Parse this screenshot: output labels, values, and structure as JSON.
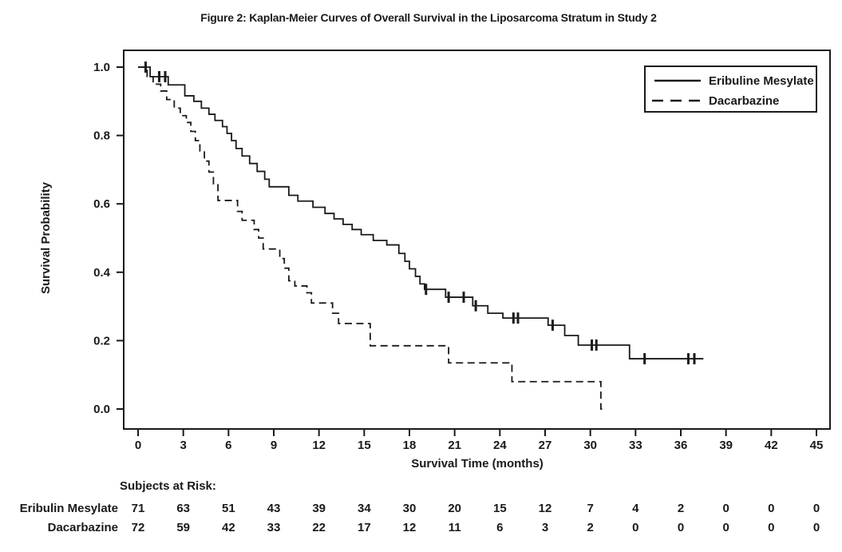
{
  "title": "Figure 2: Kaplan-Meier Curves of Overall Survival in the Liposarcoma Stratum in Study 2",
  "chart_data": {
    "type": "line",
    "subtype": "kaplan-meier-step",
    "title": "Figure 2: Kaplan-Meier Curves of Overall Survival in the Liposarcoma Stratum in Study 2",
    "xlabel": "Survival Time (months)",
    "ylabel": "Survival Probability",
    "xlim": [
      0,
      45
    ],
    "ylim": [
      0.0,
      1.0
    ],
    "x_ticks": [
      0,
      3,
      6,
      9,
      12,
      15,
      18,
      21,
      24,
      27,
      30,
      33,
      36,
      39,
      42,
      45
    ],
    "y_ticks": [
      "1.0",
      "0.8",
      "0.6",
      "0.4",
      "0.2",
      "0.0"
    ],
    "grid": false,
    "legend": {
      "position": "top-right",
      "entries": [
        {
          "label": "Eribuline Mesylate",
          "style": "solid"
        },
        {
          "label": "Dacarbazine",
          "style": "dashed"
        }
      ]
    },
    "series": [
      {
        "name": "Eribuline Mesylate",
        "style": "solid",
        "color": "#1a1a1a",
        "steps": [
          [
            0,
            1.0
          ],
          [
            0.8,
            0.972
          ],
          [
            2.0,
            0.948
          ],
          [
            3.1,
            0.916
          ],
          [
            3.7,
            0.9
          ],
          [
            4.2,
            0.88
          ],
          [
            4.7,
            0.862
          ],
          [
            5.1,
            0.844
          ],
          [
            5.6,
            0.826
          ],
          [
            5.9,
            0.806
          ],
          [
            6.2,
            0.785
          ],
          [
            6.5,
            0.762
          ],
          [
            6.9,
            0.74
          ],
          [
            7.4,
            0.718
          ],
          [
            7.9,
            0.695
          ],
          [
            8.4,
            0.672
          ],
          [
            8.7,
            0.65
          ],
          [
            10.0,
            0.625
          ],
          [
            10.6,
            0.608
          ],
          [
            11.6,
            0.59
          ],
          [
            12.4,
            0.572
          ],
          [
            13.0,
            0.556
          ],
          [
            13.6,
            0.54
          ],
          [
            14.2,
            0.525
          ],
          [
            14.8,
            0.51
          ],
          [
            15.6,
            0.493
          ],
          [
            16.5,
            0.48
          ],
          [
            17.3,
            0.455
          ],
          [
            17.7,
            0.432
          ],
          [
            18.0,
            0.41
          ],
          [
            18.4,
            0.388
          ],
          [
            18.7,
            0.366
          ],
          [
            19.0,
            0.35
          ],
          [
            20.4,
            0.327
          ],
          [
            22.2,
            0.302
          ],
          [
            23.2,
            0.28
          ],
          [
            24.2,
            0.266
          ],
          [
            27.2,
            0.245
          ],
          [
            28.3,
            0.215
          ],
          [
            29.2,
            0.187
          ],
          [
            32.6,
            0.147
          ]
        ],
        "end_time": 37.5,
        "censor_marks": [
          [
            0.5,
            1.0
          ],
          [
            1.4,
            0.972
          ],
          [
            1.8,
            0.972
          ],
          [
            19.1,
            0.35
          ],
          [
            20.6,
            0.327
          ],
          [
            21.6,
            0.327
          ],
          [
            22.4,
            0.302
          ],
          [
            24.9,
            0.266
          ],
          [
            25.2,
            0.266
          ],
          [
            27.5,
            0.245
          ],
          [
            30.1,
            0.187
          ],
          [
            30.4,
            0.187
          ],
          [
            33.6,
            0.147
          ],
          [
            36.5,
            0.147
          ],
          [
            36.9,
            0.147
          ]
        ]
      },
      {
        "name": "Dacarbazine",
        "style": "dashed",
        "color": "#1a1a1a",
        "steps": [
          [
            0,
            1.0
          ],
          [
            0.6,
            0.972
          ],
          [
            1.0,
            0.95
          ],
          [
            1.5,
            0.93
          ],
          [
            1.9,
            0.905
          ],
          [
            2.4,
            0.88
          ],
          [
            2.8,
            0.858
          ],
          [
            3.2,
            0.838
          ],
          [
            3.5,
            0.812
          ],
          [
            3.8,
            0.785
          ],
          [
            4.1,
            0.755
          ],
          [
            4.4,
            0.725
          ],
          [
            4.7,
            0.693
          ],
          [
            5.0,
            0.658
          ],
          [
            5.3,
            0.61
          ],
          [
            6.6,
            0.578
          ],
          [
            6.9,
            0.552
          ],
          [
            7.7,
            0.525
          ],
          [
            8.0,
            0.5
          ],
          [
            8.3,
            0.468
          ],
          [
            9.4,
            0.44
          ],
          [
            9.7,
            0.412
          ],
          [
            10.0,
            0.375
          ],
          [
            10.4,
            0.36
          ],
          [
            11.2,
            0.34
          ],
          [
            11.5,
            0.31
          ],
          [
            12.9,
            0.28
          ],
          [
            13.3,
            0.25
          ],
          [
            15.4,
            0.185
          ],
          [
            20.6,
            0.135
          ],
          [
            24.8,
            0.08
          ],
          [
            30.7,
            0.0
          ]
        ],
        "end_time": 30.85,
        "censor_marks": []
      }
    ],
    "risk_table": {
      "header": "Subjects at Risk:",
      "times": [
        0,
        3,
        6,
        9,
        12,
        15,
        18,
        21,
        24,
        27,
        30,
        33,
        36,
        39,
        42,
        45
      ],
      "rows": [
        {
          "label": "Eribulin Mesylate",
          "counts": [
            71,
            63,
            51,
            43,
            39,
            34,
            30,
            20,
            15,
            12,
            7,
            4,
            2,
            0,
            0,
            0
          ]
        },
        {
          "label": "Dacarbazine",
          "counts": [
            72,
            59,
            42,
            33,
            22,
            17,
            12,
            11,
            6,
            3,
            2,
            0,
            0,
            0,
            0,
            0
          ]
        }
      ]
    }
  }
}
